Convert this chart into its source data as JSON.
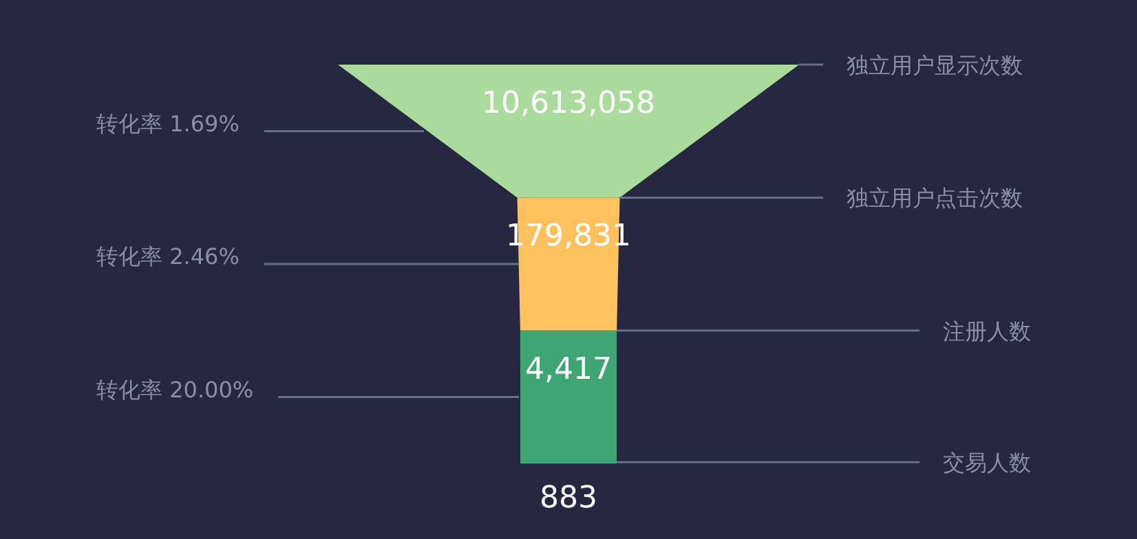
{
  "chart_data": {
    "type": "other",
    "categories": [
      "独立用户显示次数",
      "独立用户点击次数",
      "注册人数",
      "交易人数"
    ],
    "values": [
      10613058,
      179831,
      4417,
      883
    ],
    "colors": [
      "#aadb9c",
      "#ffc15e",
      "#3fa573",
      "#ffffff"
    ],
    "value_labels": [
      "10,613,058",
      "179,831",
      "4,417",
      "883"
    ],
    "annotations": [
      "转化率 1.69%",
      "转化率 2.46%",
      "转化率 20.00%"
    ]
  }
}
